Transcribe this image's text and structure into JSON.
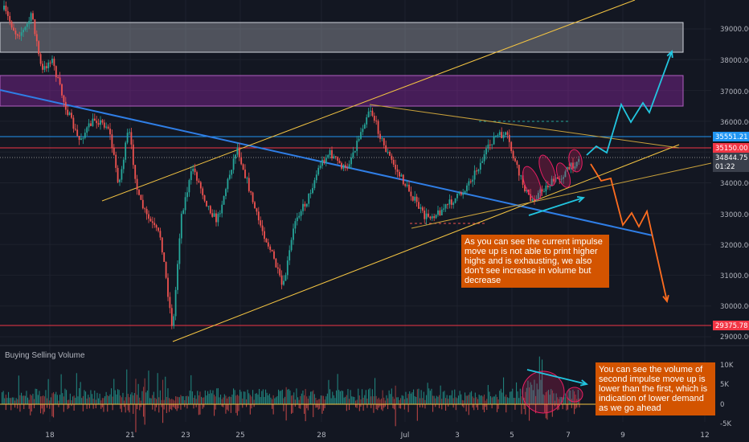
{
  "chart_data": [
    {
      "type": "candlestick",
      "title": "",
      "x_ticks": [
        "18",
        "21",
        "23",
        "25",
        "28",
        "Jul",
        "3",
        "5",
        "7",
        "9",
        "12"
      ],
      "y_ticks": [
        "39000.00",
        "38000.00",
        "37000.00",
        "36000.00",
        "35000.00",
        "34000.00",
        "33000.00",
        "32000.00",
        "31000.00",
        "30000.00",
        "29000.00"
      ],
      "ylim": [
        28800,
        39500
      ],
      "current_price": "34844.75",
      "countdown": "01:22",
      "price_labels": [
        {
          "text": "35551.21",
          "color": "#2196f3",
          "value": 35551.21
        },
        {
          "text": "35150.00",
          "color": "#f23645",
          "value": 35150
        },
        {
          "text": "29375.78",
          "color": "#f23645",
          "value": 29375.78
        }
      ],
      "zones": [
        {
          "name": "supply-zone-upper",
          "from": 38300,
          "to": 39250,
          "color": "rgba(220,220,230,0.30)"
        },
        {
          "name": "supply-zone-purple",
          "from": 36500,
          "to": 37500,
          "color": "rgba(156,39,176,0.38)"
        }
      ],
      "annotations": [
        "As you can see the current impulse move up is not able to print higher highs and is exhausting, we also don't see increase in volume but decrease"
      ]
    },
    {
      "type": "bar",
      "title": "Buying Selling Volume",
      "y_ticks": [
        "10K",
        "5K",
        "0",
        "-5K"
      ],
      "ylim": [
        -5500,
        12500
      ],
      "annotations": [
        "You can see the volume of second impulse move up is lower than the first, which is indication of lower demand as we go ahead"
      ]
    }
  ],
  "annotation_boxes": {
    "price_note": "As you can see the current impulse move up is not able to print higher highs and is exhausting, we also don't see increase in volume but decrease",
    "volume_note": "You can see the volume of second impulse move up is lower than the first, which is indication of lower demand as we go ahead"
  },
  "colors": {
    "background": "#131722",
    "up": "#26a69a",
    "down": "#ef5350",
    "trendline_blue": "#2f7ee6",
    "channel_yellow": "#f5c542",
    "projection_cyan": "#22c6e0",
    "projection_orange": "#ff6d1f"
  }
}
